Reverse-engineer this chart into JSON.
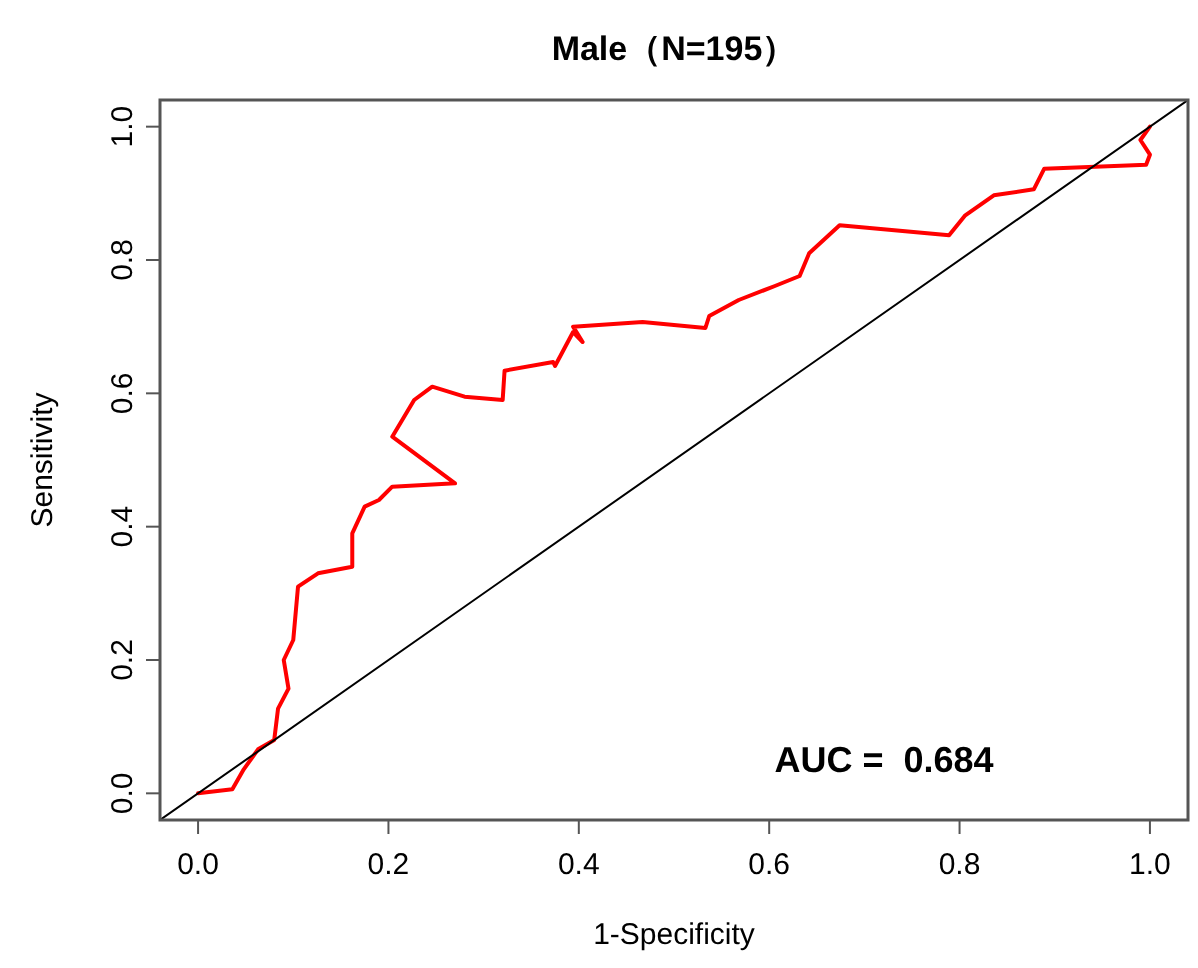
{
  "chart_data": {
    "type": "line",
    "title": "Male（N=195）",
    "xlabel": "1-Specificity",
    "ylabel": "Sensitivity",
    "xlim": [
      -0.04,
      1.04
    ],
    "ylim": [
      -0.04,
      1.04
    ],
    "xticks": [
      {
        "value": 0,
        "label": "0.0"
      },
      0.2,
      0.4,
      0.6,
      0.8,
      {
        "value": 1,
        "label": "1.0"
      }
    ],
    "yticks": [
      {
        "value": 0,
        "label": "0.0"
      },
      0.2,
      0.4,
      0.6,
      0.8,
      {
        "value": 1,
        "label": "1.0"
      }
    ],
    "grid": false,
    "annotations": [
      "AUC =  0.684"
    ],
    "series": [
      {
        "color": "#ff0000",
        "x": [
          0,
          0.036,
          0.048,
          0.063,
          0.08,
          0.084,
          0.095,
          0.09,
          0.1,
          0.105,
          0.126,
          0.162,
          0.162,
          0.175,
          0.19,
          0.204,
          0.27,
          0.204,
          0.227,
          0.246,
          0.28,
          0.32,
          0.322,
          0.373,
          0.375,
          0.394,
          0.404,
          0.394,
          0.467,
          0.533,
          0.537,
          0.568,
          0.606,
          0.632,
          0.642,
          0.674,
          0.789,
          0.806,
          0.836,
          0.878,
          0.889,
          0.996,
          1.0,
          0.99,
          1.0
        ],
        "values": [
          0,
          0.006,
          0.036,
          0.066,
          0.08,
          0.127,
          0.157,
          0.2,
          0.23,
          0.31,
          0.33,
          0.34,
          0.39,
          0.43,
          0.44,
          0.46,
          0.465,
          0.535,
          0.59,
          0.61,
          0.595,
          0.59,
          0.634,
          0.647,
          0.641,
          0.692,
          0.677,
          0.7,
          0.707,
          0.698,
          0.716,
          0.74,
          0.761,
          0.776,
          0.81,
          0.852,
          0.837,
          0.867,
          0.897,
          0.906,
          0.937,
          0.943,
          0.958,
          0.98,
          1.0
        ]
      },
      {
        "color": "#000000",
        "x": [
          -0.04,
          1.04
        ],
        "values": [
          -0.04,
          1.04
        ]
      }
    ]
  }
}
